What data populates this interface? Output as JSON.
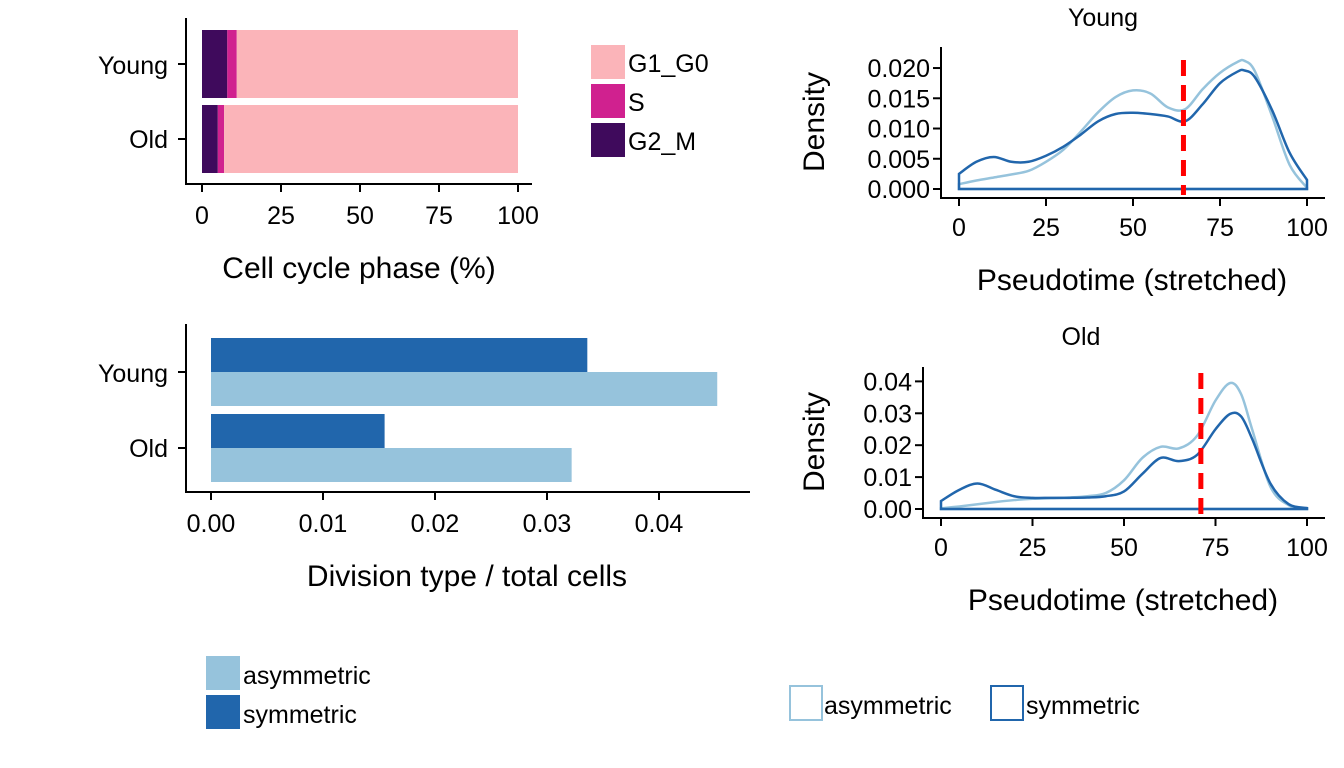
{
  "colors": {
    "G1_G0": "#FBB4B9",
    "S": "#D0218F",
    "G2_M": "#3F0A5C",
    "asymmetric": "#96C3DC",
    "symmetric": "#2166AC",
    "threshold": "#FF0000"
  },
  "chart_data": [
    {
      "id": "cell-cycle",
      "type": "bar",
      "stacked": true,
      "orientation": "horizontal",
      "categories": [
        "Young",
        "Old"
      ],
      "series": [
        {
          "name": "G2_M",
          "values": [
            8,
            5
          ]
        },
        {
          "name": "S",
          "values": [
            3,
            2
          ]
        },
        {
          "name": "G1_G0",
          "values": [
            89,
            93
          ]
        }
      ],
      "xlabel": "Cell cycle phase (%)",
      "xlim": [
        0,
        100
      ],
      "xticks": [
        "0",
        "25",
        "50",
        "75",
        "100"
      ],
      "legend": [
        "G1_G0",
        "S",
        "G2_M"
      ],
      "legend_position": "right"
    },
    {
      "id": "division-type",
      "type": "bar",
      "orientation": "horizontal",
      "grouped": true,
      "categories": [
        "Young",
        "Old"
      ],
      "series": [
        {
          "name": "symmetric",
          "values": [
            0.0336,
            0.0155
          ]
        },
        {
          "name": "asymmetric",
          "values": [
            0.0452,
            0.0322
          ]
        }
      ],
      "xlabel": "Division type / total cells",
      "xlim": [
        0,
        0.045
      ],
      "xticks": [
        "0.00",
        "0.01",
        "0.02",
        "0.03",
        "0.04"
      ],
      "legend": [
        "asymmetric",
        "symmetric"
      ],
      "legend_position": "bottom"
    },
    {
      "id": "density-young",
      "type": "line",
      "title": "Young",
      "xlabel": "Pseudotime (stretched)",
      "ylabel": "Density",
      "xlim": [
        0,
        100
      ],
      "ylim": [
        0,
        0.021
      ],
      "xticks": [
        "0",
        "25",
        "50",
        "75",
        "100"
      ],
      "yticks": [
        "0.000",
        "0.005",
        "0.010",
        "0.015",
        "0.020"
      ],
      "threshold_x": 64.5,
      "x": [
        0,
        5,
        10,
        15,
        20,
        25,
        30,
        35,
        40,
        45,
        50,
        55,
        60,
        65,
        70,
        75,
        80,
        82,
        85,
        90,
        95,
        100
      ],
      "series": [
        {
          "name": "asymmetric",
          "values": [
            0.0008,
            0.0014,
            0.0019,
            0.0024,
            0.003,
            0.0045,
            0.0065,
            0.0095,
            0.0127,
            0.0152,
            0.0163,
            0.0158,
            0.0135,
            0.0132,
            0.0165,
            0.0192,
            0.021,
            0.0212,
            0.0195,
            0.012,
            0.004,
            0.0002
          ]
        },
        {
          "name": "symmetric",
          "values": [
            0.0025,
            0.0045,
            0.0053,
            0.0045,
            0.0045,
            0.0055,
            0.007,
            0.009,
            0.0112,
            0.0124,
            0.0126,
            0.0124,
            0.012,
            0.0112,
            0.014,
            0.0175,
            0.0194,
            0.0196,
            0.0185,
            0.013,
            0.006,
            0.0015
          ]
        }
      ],
      "legend": [
        "asymmetric",
        "symmetric"
      ],
      "legend_position": "bottom"
    },
    {
      "id": "density-old",
      "type": "line",
      "title": "Old",
      "xlabel": "Pseudotime (stretched)",
      "ylabel": "Density",
      "xlim": [
        0,
        100
      ],
      "ylim": [
        0,
        0.042
      ],
      "xticks": [
        "0",
        "25",
        "50",
        "75",
        "100"
      ],
      "yticks": [
        "0.00",
        "0.01",
        "0.02",
        "0.03",
        "0.04"
      ],
      "threshold_x": 71,
      "x": [
        0,
        5,
        10,
        15,
        20,
        25,
        30,
        35,
        40,
        45,
        50,
        55,
        60,
        65,
        70,
        75,
        79,
        82,
        85,
        90,
        95,
        100
      ],
      "series": [
        {
          "name": "asymmetric",
          "values": [
            0.0002,
            0.0008,
            0.0015,
            0.0022,
            0.0028,
            0.0032,
            0.0034,
            0.0036,
            0.004,
            0.005,
            0.009,
            0.016,
            0.0195,
            0.019,
            0.023,
            0.034,
            0.0395,
            0.036,
            0.025,
            0.007,
            0.0012,
            0.0001
          ]
        },
        {
          "name": "symmetric",
          "values": [
            0.0025,
            0.006,
            0.008,
            0.006,
            0.004,
            0.0035,
            0.0035,
            0.0035,
            0.0036,
            0.004,
            0.0055,
            0.011,
            0.016,
            0.015,
            0.017,
            0.025,
            0.0298,
            0.029,
            0.022,
            0.008,
            0.0015,
            0.0003
          ]
        }
      ],
      "legend": [
        "asymmetric",
        "symmetric"
      ],
      "legend_position": "bottom"
    }
  ]
}
